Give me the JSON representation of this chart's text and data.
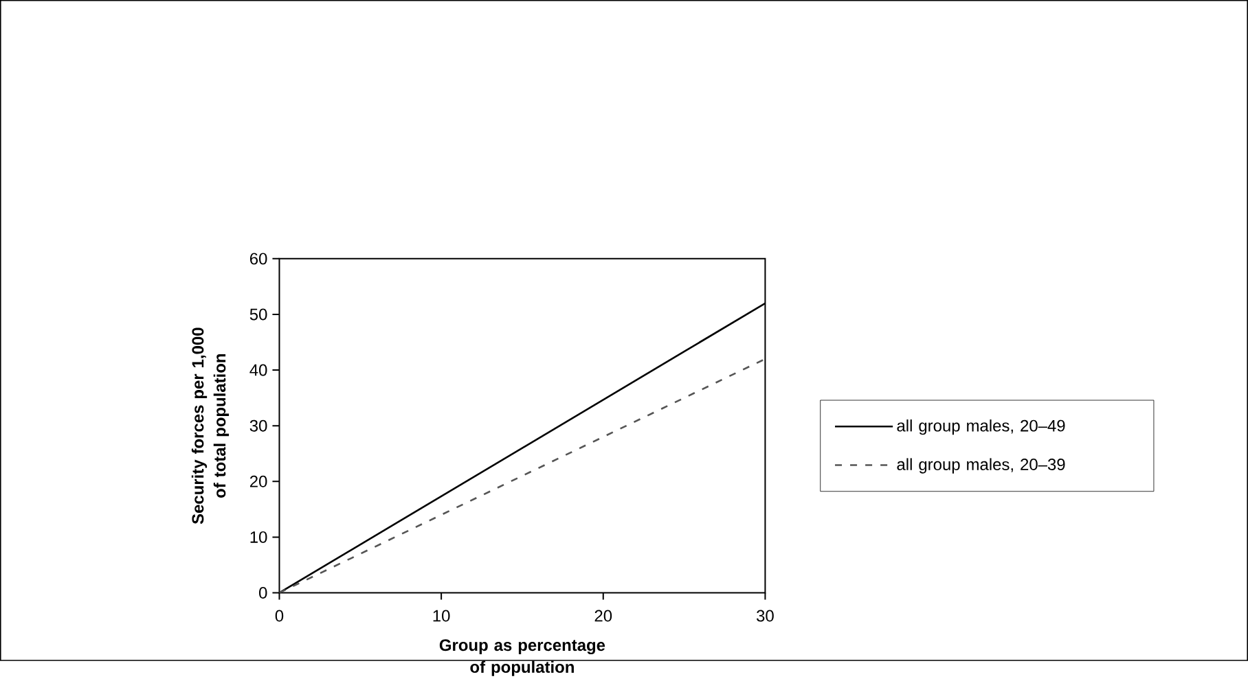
{
  "chart_data": {
    "type": "line",
    "xlabel": "Group as percentage of population",
    "ylabel": "Security forces per 1,000 of total population",
    "x": [
      0,
      30
    ],
    "series": [
      {
        "name": "all group males, 20–49",
        "color": "#000000",
        "line_style": "solid",
        "values": [
          0,
          52
        ]
      },
      {
        "name": "all group males, 20–39",
        "color": "#555555",
        "line_style": "dashed",
        "values": [
          0,
          42
        ]
      }
    ],
    "xlim": [
      0,
      30
    ],
    "ylim": [
      0,
      60
    ],
    "xticks": [
      0,
      10,
      20,
      30
    ],
    "yticks": [
      0,
      10,
      20,
      30,
      40,
      50,
      60
    ],
    "legend": "right",
    "grid": false,
    "marker": "none"
  }
}
